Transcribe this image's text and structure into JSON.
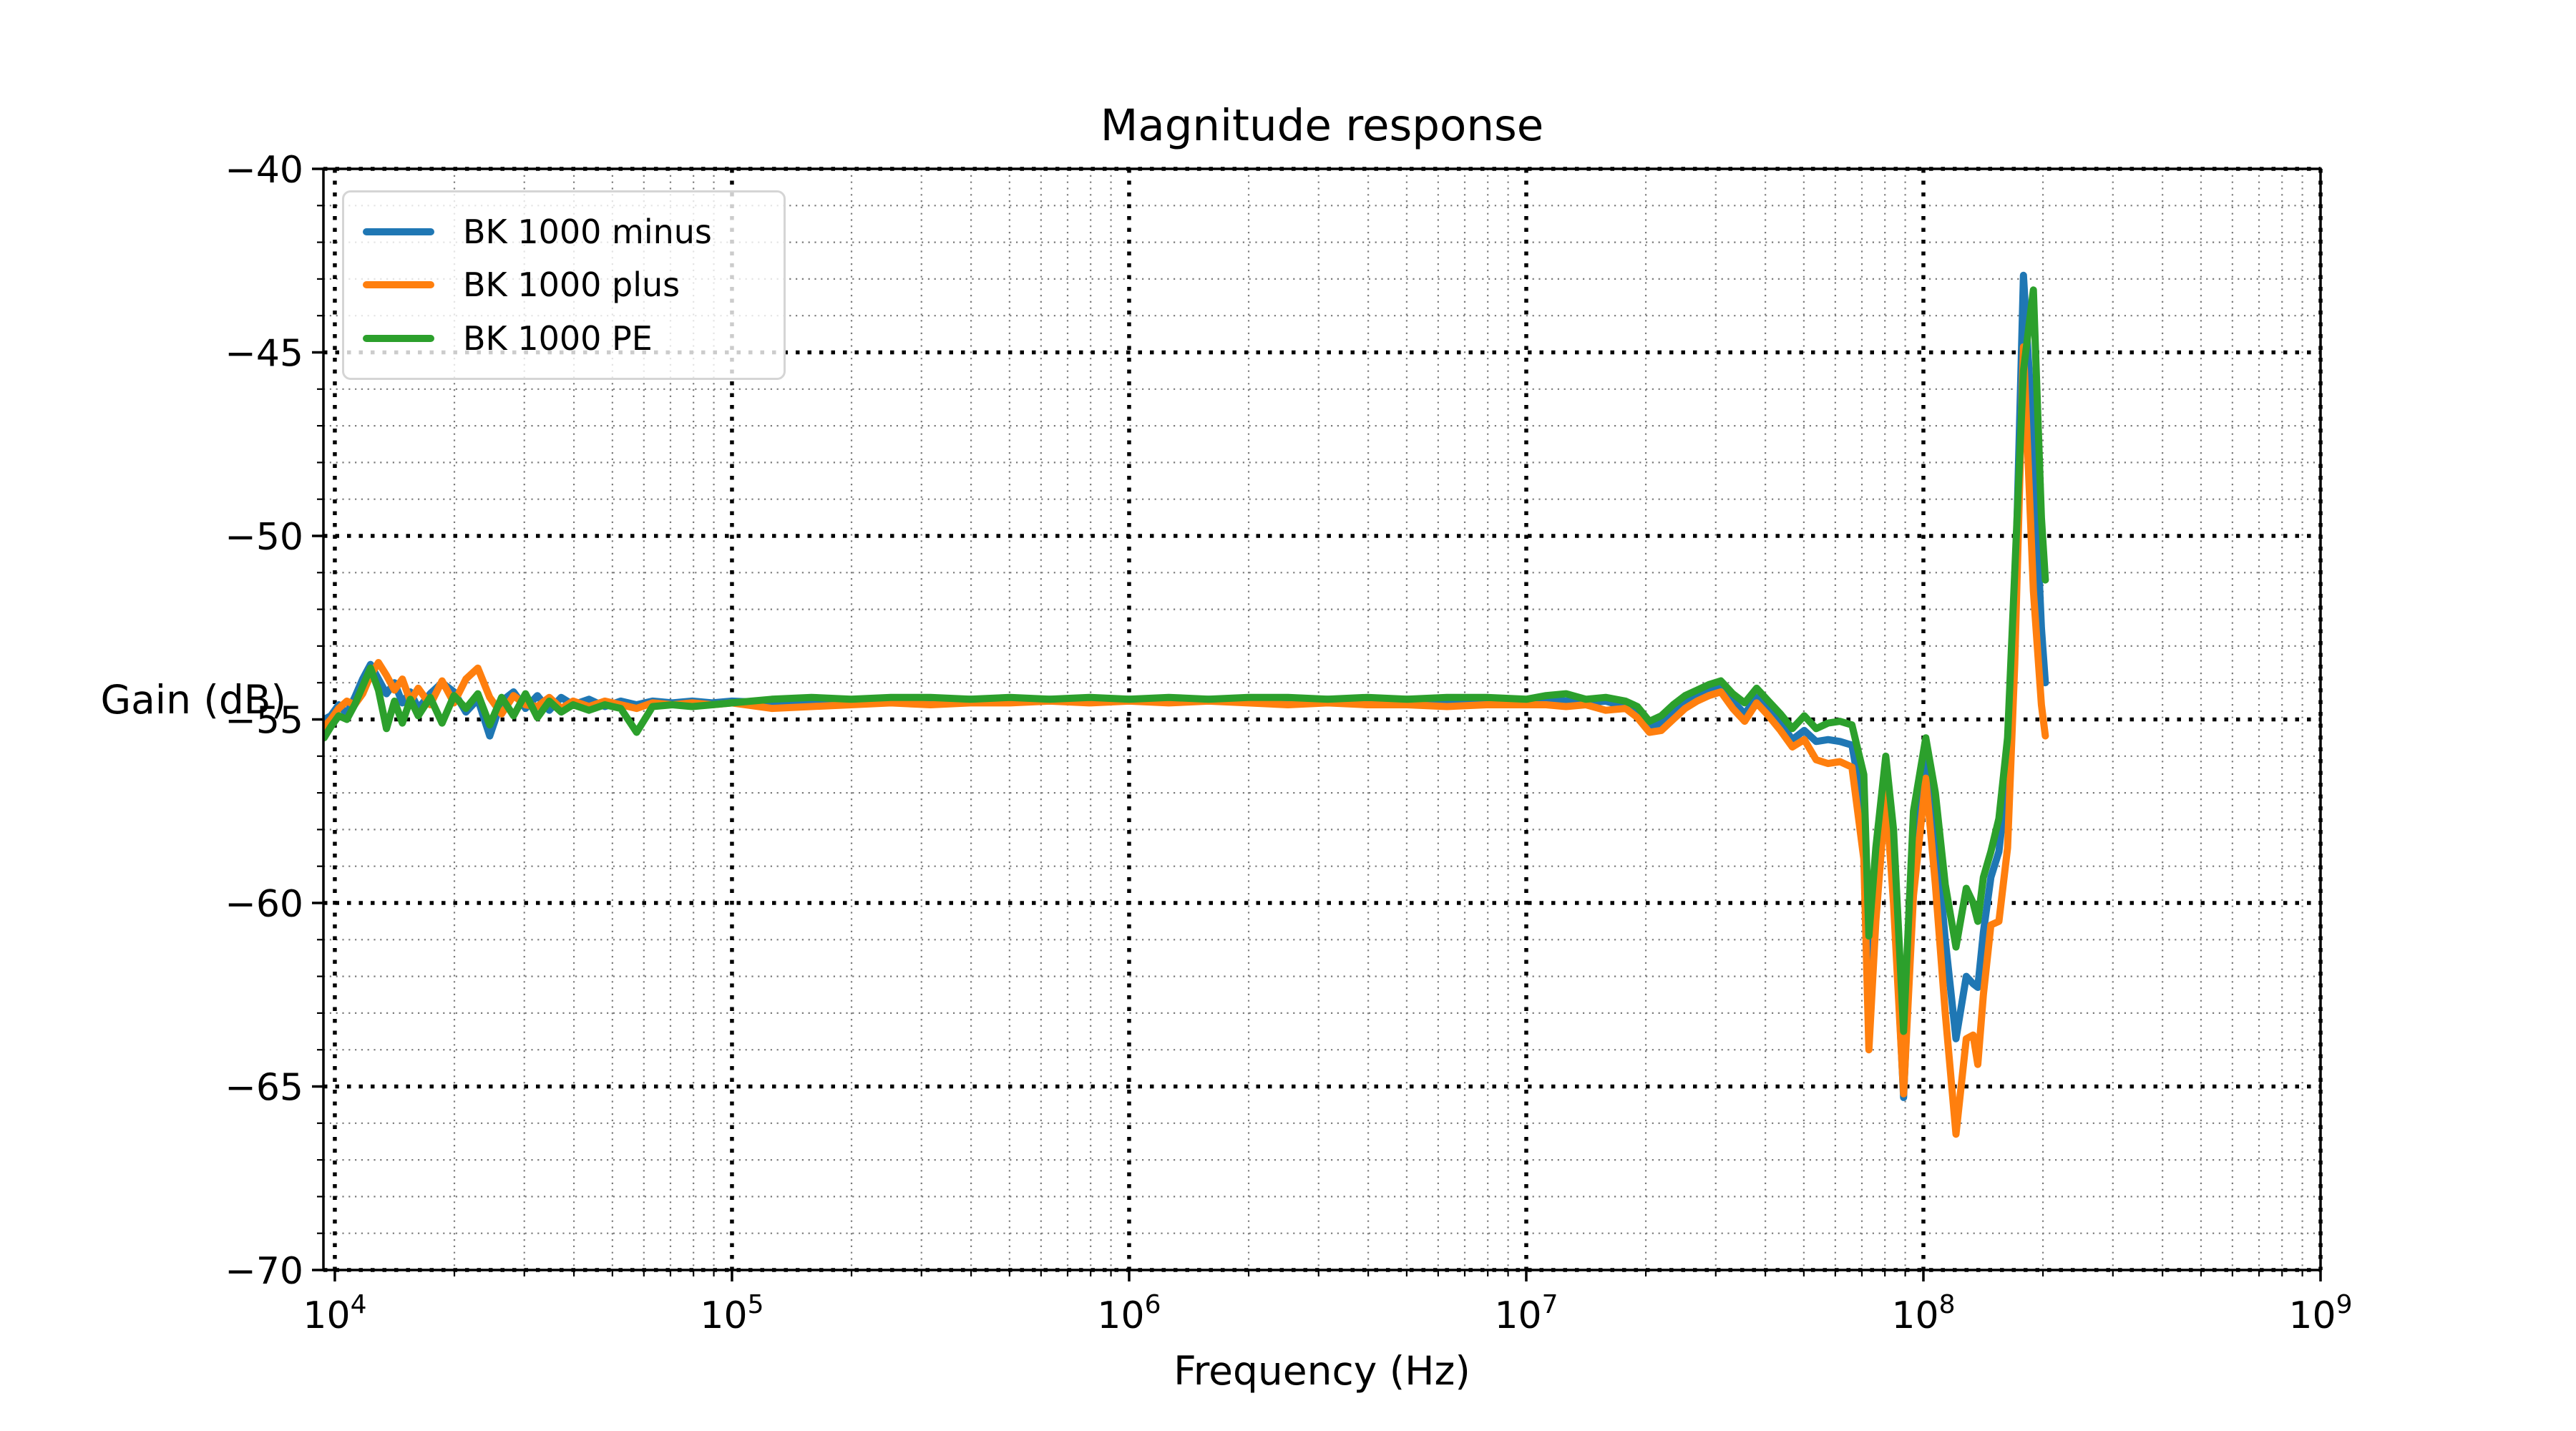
{
  "title": "Magnitude response",
  "axis": {
    "xlabel": "Frequency (Hz)",
    "ylabel": "Gain (dB)"
  },
  "chart_data": {
    "type": "line",
    "title": "Magnitude response",
    "xlabel": "Frequency (Hz)",
    "ylabel": "Gain (dB)",
    "x_scale": "log",
    "xlim": [
      9360,
      1000000000
    ],
    "ylim": [
      -70,
      -40
    ],
    "x_major_ticks": [
      10000,
      100000,
      1000000,
      10000000,
      100000000,
      1000000000
    ],
    "y_major_ticks": [
      -70,
      -65,
      -60,
      -55,
      -50,
      -45,
      -40
    ],
    "y_minor_step": 1,
    "grid": "both",
    "legend_position": "upper left",
    "colors": {
      "major_grid": "#000000",
      "minor_grid": "#7a7a7a",
      "spine": "#000000"
    },
    "x": [
      9400,
      9770,
      10230,
      10720,
      11220,
      11750,
      12300,
      12880,
      13490,
      14130,
      14790,
      15490,
      16220,
      17380,
      18620,
      19950,
      21380,
      22910,
      24550,
      26300,
      28180,
      30200,
      32360,
      34670,
      37150,
      39810,
      43650,
      47860,
      52480,
      57540,
      63100,
      70790,
      79430,
      89130,
      100000,
      125900,
      158500,
      199500,
      251200,
      316200,
      398100,
      501200,
      631000,
      794300,
      1000000,
      1259000,
      1585000,
      1995000,
      2512000,
      3162000,
      3981000,
      5012000,
      6310000,
      7943000,
      10000000,
      11220000,
      12590000,
      14130000,
      15850000,
      17780000,
      19050000,
      20420000,
      21880000,
      23440000,
      25120000,
      26920000,
      28840000,
      30900000,
      33110000,
      35480000,
      38020000,
      40740000,
      43650000,
      46770000,
      50120000,
      53700000,
      57540000,
      61660000,
      66070000,
      70790000,
      72900000,
      75900000,
      80400000,
      84100000,
      89130000,
      94400000,
      101400000,
      107200000,
      113500000,
      120800000,
      128200000,
      133400000,
      137100000,
      141600000,
      147900000,
      154900000,
      162900000,
      169800000,
      178600000,
      189200000,
      198200000,
      202800000
    ],
    "series": [
      {
        "name": "BK 1000 minus",
        "color": "#1f77b4",
        "gains": [
          -55.0,
          -54.9,
          -54.6,
          -54.85,
          -54.4,
          -53.9,
          -53.5,
          -53.9,
          -54.3,
          -54.0,
          -54.55,
          -54.25,
          -54.7,
          -54.3,
          -54.0,
          -54.25,
          -54.8,
          -54.45,
          -55.45,
          -54.5,
          -54.25,
          -54.7,
          -54.35,
          -54.75,
          -54.4,
          -54.6,
          -54.45,
          -54.65,
          -54.5,
          -54.6,
          -54.5,
          -54.55,
          -54.5,
          -54.55,
          -54.5,
          -54.55,
          -54.5,
          -54.5,
          -54.45,
          -54.5,
          -54.45,
          -54.5,
          -54.45,
          -54.5,
          -54.45,
          -54.5,
          -54.45,
          -54.5,
          -54.5,
          -54.45,
          -54.5,
          -54.45,
          -54.5,
          -54.45,
          -54.5,
          -54.45,
          -54.5,
          -54.55,
          -54.5,
          -54.65,
          -54.85,
          -55.25,
          -55.1,
          -54.8,
          -54.5,
          -54.3,
          -54.15,
          -54.05,
          -54.5,
          -54.85,
          -54.4,
          -54.7,
          -55.1,
          -55.55,
          -55.3,
          -55.6,
          -55.55,
          -55.6,
          -55.7,
          -57.5,
          -61.6,
          -59.5,
          -56.7,
          -59.5,
          -65.3,
          -59.0,
          -56.0,
          -58.0,
          -61.0,
          -63.7,
          -62.0,
          -62.2,
          -62.3,
          -60.8,
          -59.3,
          -58.6,
          -56.5,
          -52.0,
          -42.9,
          -47.5,
          -52.5,
          -54.0
        ]
      },
      {
        "name": "BK 1000 plus",
        "color": "#ff7f0e",
        "gains": [
          -55.2,
          -55.0,
          -54.7,
          -54.5,
          -54.6,
          -54.3,
          -53.8,
          -53.45,
          -53.8,
          -54.2,
          -53.9,
          -54.5,
          -54.15,
          -54.6,
          -53.95,
          -54.55,
          -53.9,
          -53.6,
          -54.4,
          -54.85,
          -54.35,
          -54.6,
          -54.65,
          -54.4,
          -54.7,
          -54.5,
          -54.65,
          -54.5,
          -54.6,
          -54.7,
          -54.55,
          -54.6,
          -54.55,
          -54.6,
          -54.55,
          -54.7,
          -54.65,
          -54.6,
          -54.55,
          -54.6,
          -54.55,
          -54.55,
          -54.5,
          -54.55,
          -54.5,
          -54.55,
          -54.5,
          -54.55,
          -54.6,
          -54.55,
          -54.6,
          -54.6,
          -54.65,
          -54.6,
          -54.6,
          -54.6,
          -54.65,
          -54.6,
          -54.75,
          -54.7,
          -54.95,
          -55.35,
          -55.3,
          -55.0,
          -54.7,
          -54.5,
          -54.35,
          -54.25,
          -54.7,
          -55.05,
          -54.55,
          -54.9,
          -55.3,
          -55.75,
          -55.55,
          -56.1,
          -56.2,
          -56.15,
          -56.3,
          -58.8,
          -64.0,
          -60.5,
          -57.0,
          -60.0,
          -65.2,
          -59.8,
          -56.6,
          -59.5,
          -63.0,
          -66.3,
          -63.7,
          -63.6,
          -64.4,
          -62.5,
          -60.6,
          -60.5,
          -58.5,
          -53.5,
          -44.85,
          -51.5,
          -54.6,
          -55.45
        ]
      },
      {
        "name": "BK 1000 PE",
        "color": "#2ca02c",
        "gains": [
          -55.5,
          -55.2,
          -54.9,
          -55.0,
          -54.6,
          -54.1,
          -53.6,
          -54.2,
          -55.25,
          -54.5,
          -55.1,
          -54.45,
          -54.9,
          -54.4,
          -55.1,
          -54.35,
          -54.7,
          -54.3,
          -55.15,
          -54.4,
          -54.9,
          -54.3,
          -54.95,
          -54.5,
          -54.8,
          -54.6,
          -54.75,
          -54.6,
          -54.7,
          -55.35,
          -54.65,
          -54.6,
          -54.65,
          -54.6,
          -54.55,
          -54.45,
          -54.4,
          -54.45,
          -54.4,
          -54.4,
          -54.45,
          -54.4,
          -54.45,
          -54.4,
          -54.45,
          -54.4,
          -54.45,
          -54.4,
          -54.4,
          -54.45,
          -54.4,
          -54.45,
          -54.4,
          -54.4,
          -54.45,
          -54.35,
          -54.3,
          -54.45,
          -54.4,
          -54.5,
          -54.65,
          -55.05,
          -54.9,
          -54.6,
          -54.35,
          -54.2,
          -54.05,
          -53.95,
          -54.3,
          -54.55,
          -54.15,
          -54.5,
          -54.85,
          -55.25,
          -54.9,
          -55.25,
          -55.1,
          -55.05,
          -55.15,
          -56.5,
          -60.9,
          -58.5,
          -56.0,
          -58.0,
          -63.5,
          -57.5,
          -55.5,
          -57.0,
          -59.5,
          -61.2,
          -59.6,
          -60.0,
          -60.5,
          -59.3,
          -58.6,
          -57.7,
          -55.5,
          -51.0,
          -45.5,
          -43.3,
          -49.5,
          -51.2
        ]
      }
    ]
  }
}
